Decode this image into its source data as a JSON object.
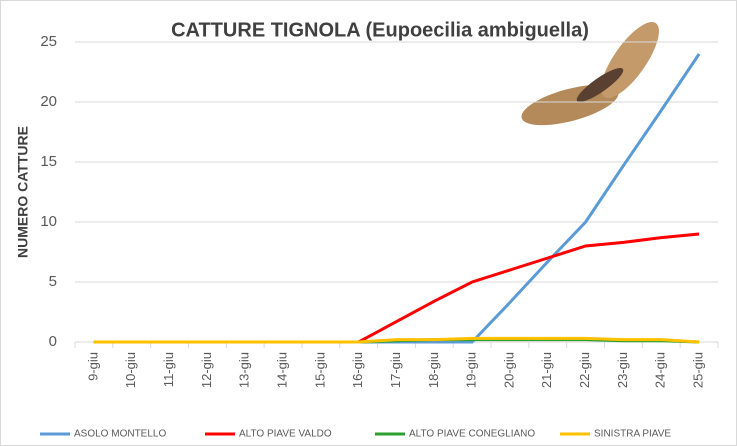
{
  "chart_data": {
    "type": "line",
    "title": "CATTURE TIGNOLA (Eupoecilia ambiguella)",
    "y_label": "NUMERO CATTURE",
    "categories": [
      "9-giu",
      "10-giu",
      "11-giu",
      "12-giu",
      "13-giu",
      "14-giu",
      "15-giu",
      "16-giu",
      "17-giu",
      "18-giu",
      "19-giu",
      "20-giu",
      "21-giu",
      "22-giu",
      "23-giu",
      "24-giu",
      "25-giu"
    ],
    "series": [
      {
        "name": "ASOLO MONTELLO",
        "color": "#5b9bd5",
        "values": [
          0,
          0,
          0,
          0,
          0,
          0,
          0,
          0,
          0,
          0,
          0,
          3.3,
          6.7,
          10,
          14.7,
          19.3,
          24
        ]
      },
      {
        "name": "ALTO PIAVE VALDO",
        "color": "#ff0000",
        "values": [
          0,
          0,
          0,
          0,
          0,
          0,
          0,
          0,
          1.7,
          3.4,
          5,
          6,
          7,
          8,
          8.3,
          8.7,
          9
        ]
      },
      {
        "name": "ALTO PIAVE CONEGLIANO",
        "color": "#2ca02c",
        "values": [
          0,
          0,
          0,
          0,
          0,
          0,
          0,
          0,
          0.1,
          0.2,
          0.2,
          0.2,
          0.2,
          0.2,
          0.1,
          0.1,
          0
        ]
      },
      {
        "name": "SINISTRA PIAVE",
        "color": "#ffc000",
        "values": [
          0,
          0,
          0,
          0,
          0,
          0,
          0,
          0,
          0.2,
          0.2,
          0.3,
          0.3,
          0.3,
          0.3,
          0.2,
          0.2,
          0
        ]
      }
    ],
    "ylim": [
      0,
      25
    ],
    "yticks": [
      0,
      5,
      10,
      15,
      20,
      25
    ],
    "grid": true
  }
}
